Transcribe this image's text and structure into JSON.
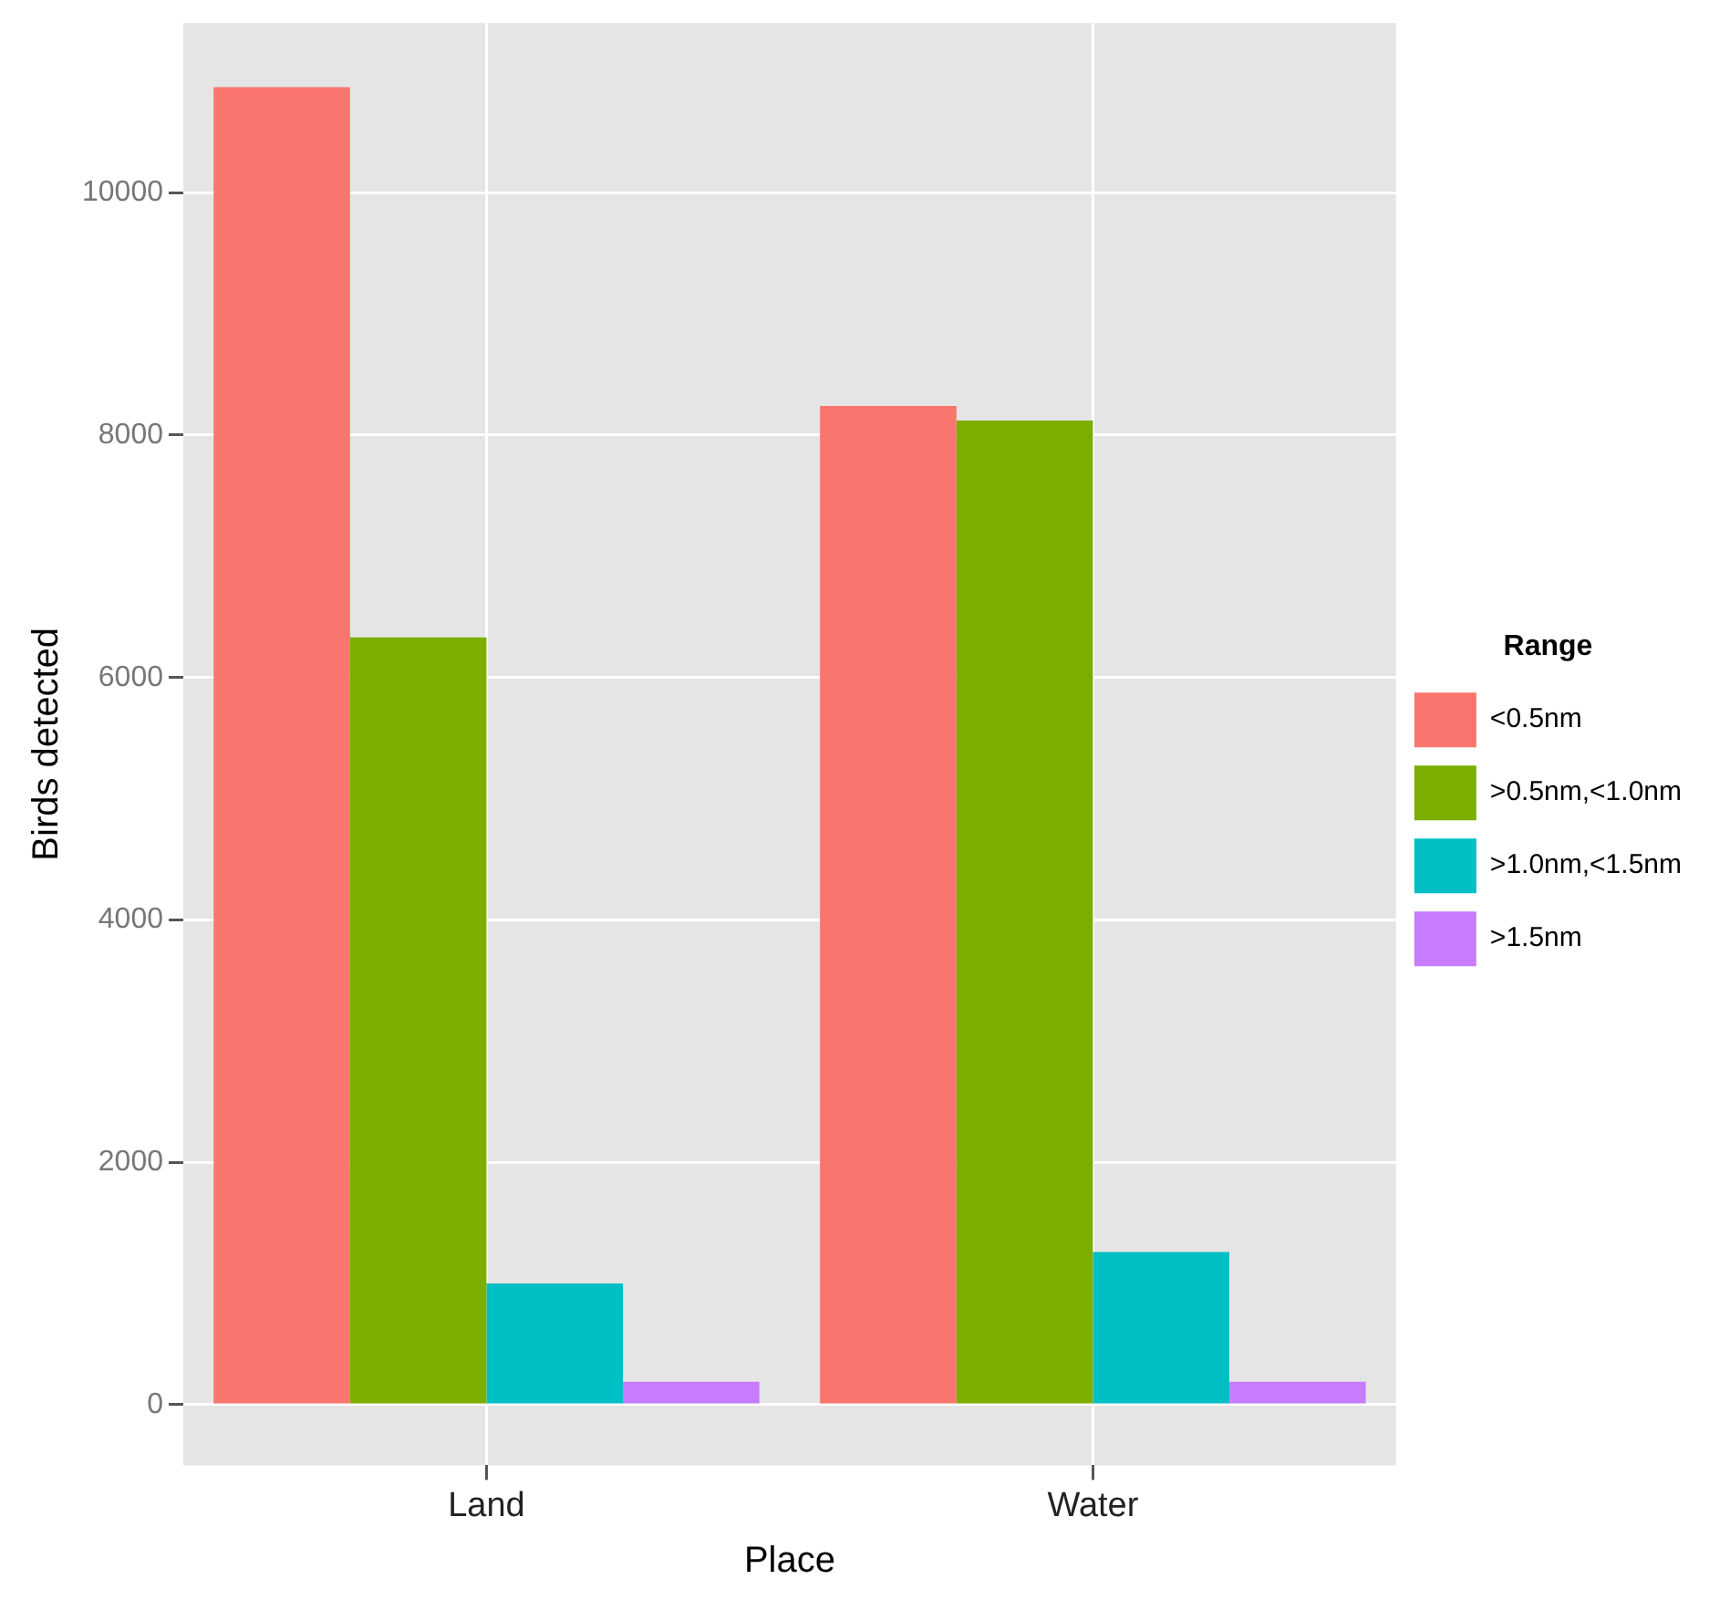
{
  "chart_data": {
    "type": "bar",
    "xlabel": "Place",
    "ylabel": "Birds detected",
    "legend_title": "Range",
    "categories": [
      "Land",
      "Water"
    ],
    "series": [
      {
        "name": "<0.5nm",
        "color": "#f8766d",
        "values": [
          10870,
          8240
        ]
      },
      {
        "name": ">0.5nm,<1.0nm",
        "color": "#7cae00",
        "values": [
          6330,
          8120
        ]
      },
      {
        "name": ">1.0nm,<1.5nm",
        "color": "#00bfc4",
        "values": [
          1000,
          1260
        ]
      },
      {
        "name": ">1.5nm",
        "color": "#c77cff",
        "values": [
          190,
          190
        ]
      }
    ],
    "ylim": [
      -500,
      11400
    ],
    "yticks": [
      0,
      2000,
      4000,
      6000,
      8000,
      10000
    ],
    "grid": true,
    "legend": "right"
  }
}
